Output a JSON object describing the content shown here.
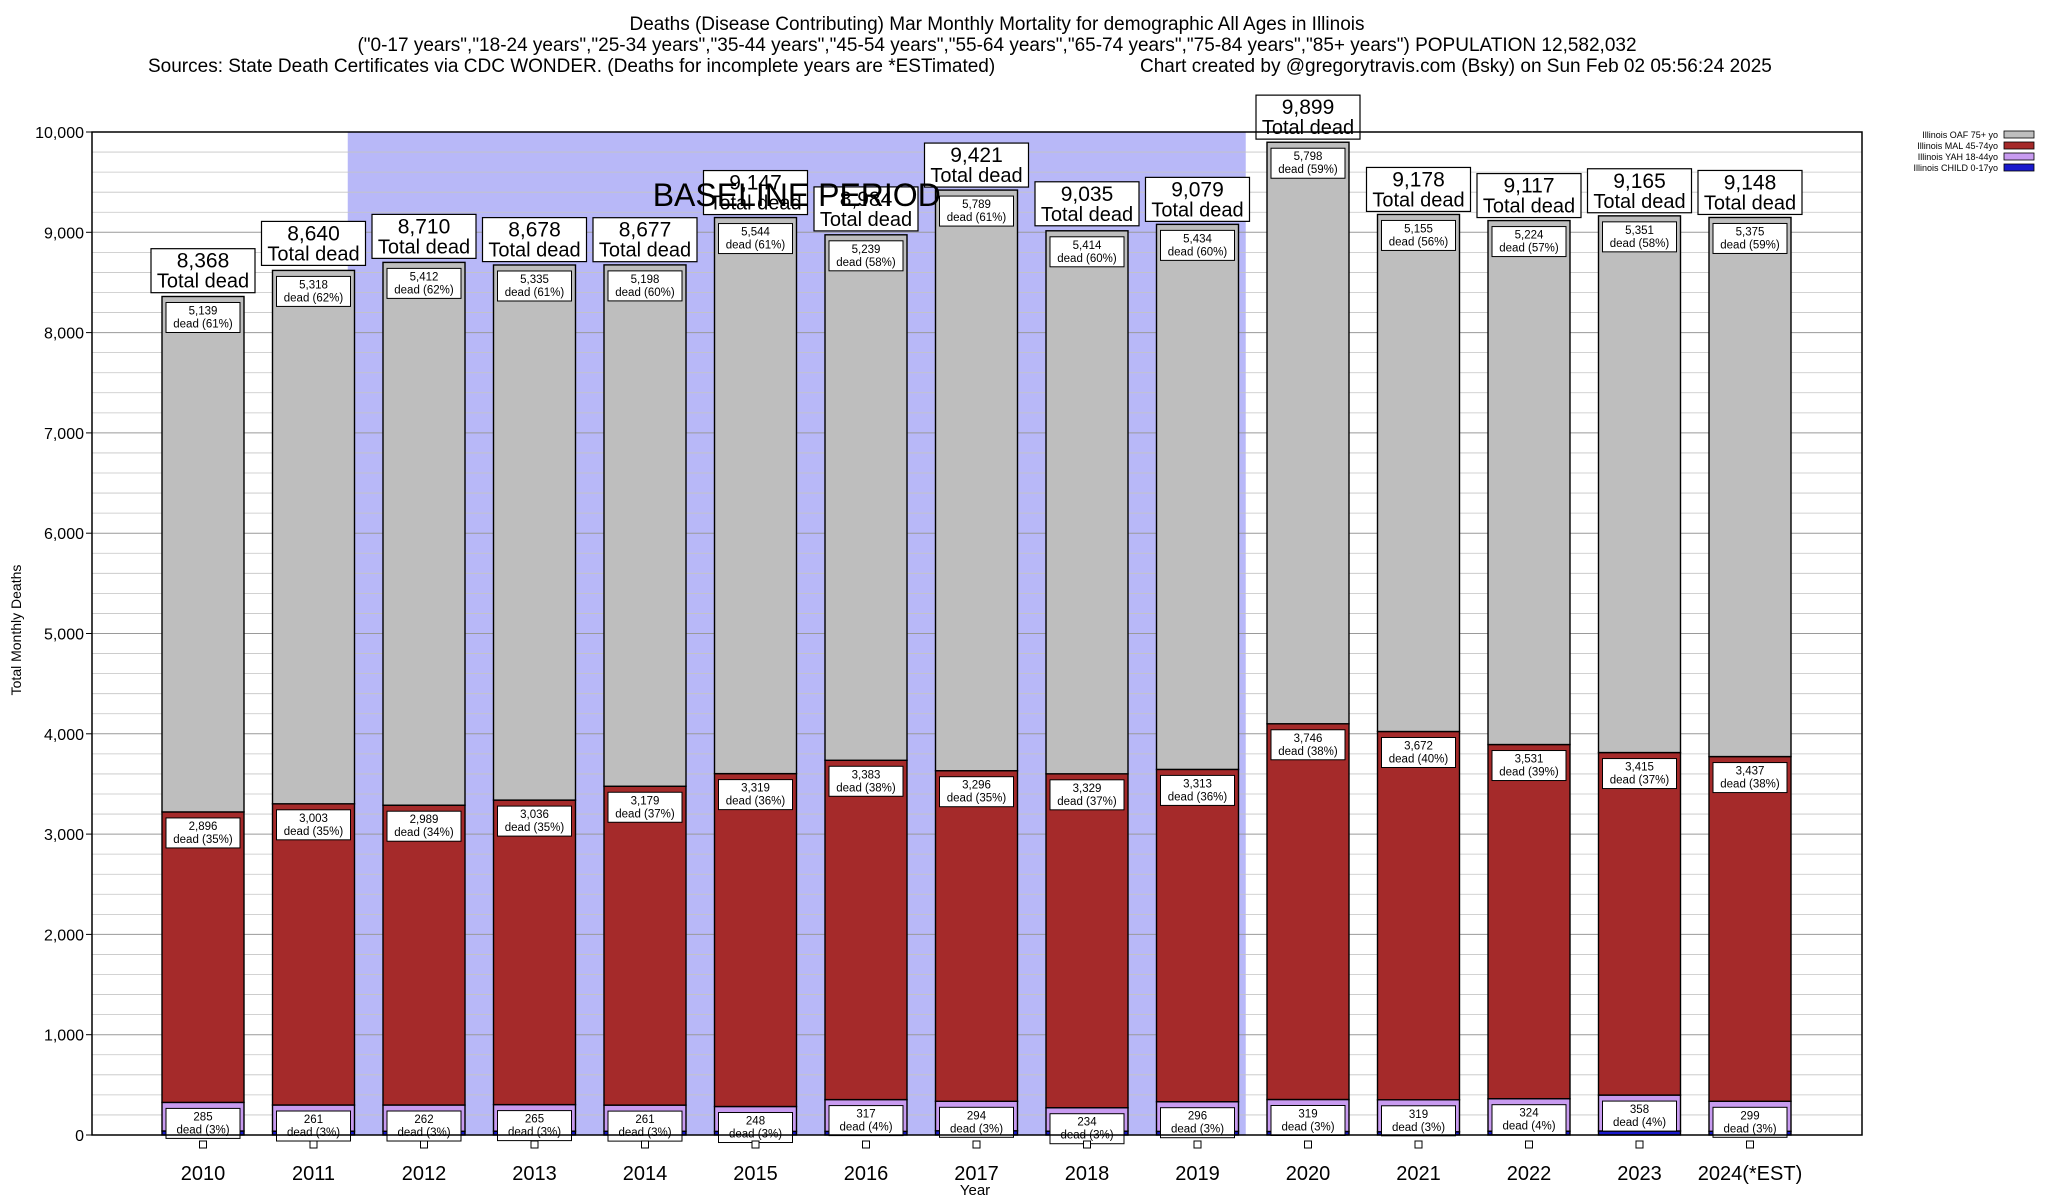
{
  "chart_data": {
    "type": "bar",
    "title_lines": [
      "Deaths (Disease Contributing) Mar Monthly Mortality for demographic All Ages in Illinois",
      "(\"0-17 years\",\"18-24 years\",\"25-34 years\",\"35-44 years\",\"45-54 years\",\"55-64 years\",\"65-74 years\",\"75-84 years\",\"85+ years\") POPULATION 12,582,032"
    ],
    "sources": "Sources: State Death Certificates via CDC WONDER. (Deaths for incomplete years are *ESTimated)",
    "credit": "Chart created by @gregorytravis.com (Bsky) on Sun Feb 02 05:56:24 2025",
    "xlabel": "Year",
    "ylabel": "Total Monthly Deaths",
    "ylim": [
      0,
      10000
    ],
    "yticks": [
      "0",
      "1,000",
      "2,000",
      "3,000",
      "4,000",
      "5,000",
      "6,000",
      "7,000",
      "8,000",
      "9,000",
      "10,000"
    ],
    "categories": [
      "2010",
      "2011",
      "2012",
      "2013",
      "2014",
      "2015",
      "2016",
      "2017",
      "2018",
      "2019",
      "2020",
      "2021",
      "2022",
      "2023",
      "2024(*EST)"
    ],
    "baseline_label": "BASELINE PERIOD",
    "baseline_range": [
      "2012",
      "2019"
    ],
    "legend_placement": "top-right",
    "series": [
      {
        "name": "Illinois CHILD 0-17yo",
        "color": "#1a1acc",
        "values": [
          40,
          38,
          37,
          38,
          37,
          36,
          36,
          42,
          38,
          36,
          35,
          32,
          38,
          40,
          37
        ]
      },
      {
        "name": "Illinois YAH 18-44yo",
        "color": "#c89bf0",
        "values": [
          285,
          261,
          262,
          265,
          261,
          248,
          317,
          294,
          234,
          296,
          319,
          319,
          324,
          358,
          299
        ]
      },
      {
        "name": "Illinois MAL 45-74yo",
        "color": "#a52a2a",
        "values": [
          2896,
          3003,
          2989,
          3036,
          3179,
          3319,
          3383,
          3296,
          3329,
          3313,
          3746,
          3672,
          3531,
          3415,
          3437
        ]
      },
      {
        "name": "Illinois OAF 75+ yo",
        "color": "#bebebe",
        "values": [
          5139,
          5318,
          5412,
          5335,
          5198,
          5544,
          5239,
          5789,
          5414,
          5434,
          5798,
          5155,
          5224,
          5351,
          5375
        ]
      }
    ],
    "totals": [
      8368,
      8640,
      8710,
      8678,
      8677,
      9147,
      8984,
      9421,
      9035,
      9079,
      9899,
      9178,
      9117,
      9165,
      9148
    ],
    "total_labels": [
      "8,368",
      "8,640",
      "8,710",
      "8,678",
      "8,677",
      "9,147",
      "8,984",
      "9,421",
      "9,035",
      "9,079",
      "9,899",
      "9,178",
      "9,117",
      "9,165",
      "9,148"
    ],
    "total_caption": "Total dead",
    "segment_labels": {
      "Illinois OAF 75+ yo": [
        [
          "5,139",
          "dead (61%)"
        ],
        [
          "5,318",
          "dead (62%)"
        ],
        [
          "5,412",
          "dead (62%)"
        ],
        [
          "5,335",
          "dead (61%)"
        ],
        [
          "5,198",
          "dead (60%)"
        ],
        [
          "5,544",
          "dead (61%)"
        ],
        [
          "5,239",
          "dead (58%)"
        ],
        [
          "5,789",
          "dead (61%)"
        ],
        [
          "5,414",
          "dead (60%)"
        ],
        [
          "5,434",
          "dead (60%)"
        ],
        [
          "5,798",
          "dead (59%)"
        ],
        [
          "5,155",
          "dead (56%)"
        ],
        [
          "5,224",
          "dead (57%)"
        ],
        [
          "5,351",
          "dead (58%)"
        ],
        [
          "5,375",
          "dead (59%)"
        ]
      ],
      "Illinois MAL 45-74yo": [
        [
          "2,896",
          "dead (35%)"
        ],
        [
          "3,003",
          "dead (35%)"
        ],
        [
          "2,989",
          "dead (34%)"
        ],
        [
          "3,036",
          "dead (35%)"
        ],
        [
          "3,179",
          "dead (37%)"
        ],
        [
          "3,319",
          "dead (36%)"
        ],
        [
          "3,383",
          "dead (38%)"
        ],
        [
          "3,296",
          "dead (35%)"
        ],
        [
          "3,329",
          "dead (37%)"
        ],
        [
          "3,313",
          "dead (36%)"
        ],
        [
          "3,746",
          "dead (38%)"
        ],
        [
          "3,672",
          "dead (40%)"
        ],
        [
          "3,531",
          "dead (39%)"
        ],
        [
          "3,415",
          "dead (37%)"
        ],
        [
          "3,437",
          "dead (38%)"
        ]
      ],
      "Illinois YAH 18-44yo": [
        [
          "285",
          "dead (3%)"
        ],
        [
          "261",
          "dead (3%)"
        ],
        [
          "262",
          "dead (3%)"
        ],
        [
          "265",
          "dead (3%)"
        ],
        [
          "261",
          "dead (3%)"
        ],
        [
          "248",
          "dead (3%)"
        ],
        [
          "317",
          "dead (4%)"
        ],
        [
          "294",
          "dead (3%)"
        ],
        [
          "234",
          "dead (3%)"
        ],
        [
          "296",
          "dead (3%)"
        ],
        [
          "319",
          "dead (3%)"
        ],
        [
          "319",
          "dead (3%)"
        ],
        [
          "324",
          "dead (4%)"
        ],
        [
          "358",
          "dead (4%)"
        ],
        [
          "299",
          "dead (3%)"
        ]
      ]
    },
    "legend_order": [
      "Illinois OAF 75+ yo",
      "Illinois MAL 45-74yo",
      "Illinois YAH 18-44yo",
      "Illinois CHILD 0-17yo"
    ],
    "grid": true,
    "colors": {
      "baseline_shade": "#b8b8f8",
      "axis": "#000000"
    }
  }
}
